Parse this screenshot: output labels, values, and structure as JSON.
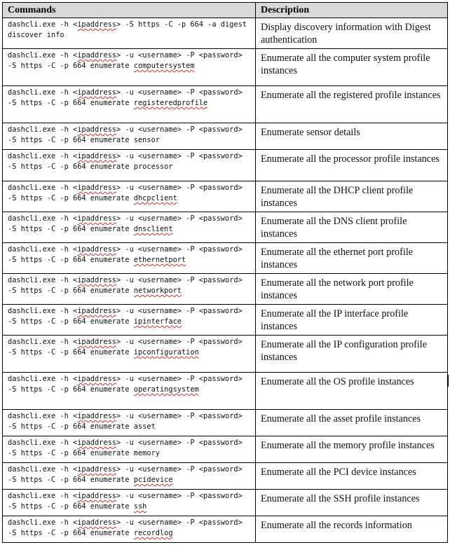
{
  "headers": {
    "commands": "Commands",
    "description": "Description"
  },
  "rows": [
    {
      "pre": "dashcli.exe -h <",
      "ip": "ipaddress",
      "mid": "> -S https -C -p 664 -a digest discover info",
      "target": "",
      "desc": "Display discovery information with Digest authentication"
    },
    {
      "pre": "dashcli.exe -h <",
      "ip": "ipaddress",
      "mid": "> -u <username> -P <password> -S https -C -p 664 enumerate ",
      "target": "computersystem",
      "desc": "Enumerate all the computer system profile instances"
    },
    {
      "pre": "dashcli.exe -h <",
      "ip": "ipaddress",
      "mid": "> -u <username> -P <password> -S https -C -p 664 enumerate ",
      "target": "registeredprofile",
      "desc": "Enumerate all the registered profile instances"
    },
    {
      "pre": "dashcli.exe -h <",
      "ip": "ipaddress",
      "mid": "> -u <username> -P <password> -S https -C -p 664 enumerate sensor",
      "target": "",
      "desc": "Enumerate sensor details"
    },
    {
      "pre": "dashcli.exe -h <",
      "ip": "ipaddress",
      "mid": "> -u <username> -P <password> -S https -C -p 664 enumerate processor",
      "target": "",
      "desc": "Enumerate all the processor profile instances"
    },
    {
      "pre": "dashcli.exe -h <",
      "ip": "ipaddress",
      "mid": "> -u <username> -P <password> -S https -C -p 664 enumerate ",
      "target": "dhcpclient",
      "desc": "Enumerate all the DHCP client profile instances"
    },
    {
      "pre": "dashcli.exe -h <",
      "ip": "ipaddress",
      "mid": "> -u <username> -P <password> -S https -C -p 664 enumerate ",
      "target": "dnsclient",
      "desc": "Enumerate all the DNS client profile instances"
    },
    {
      "pre": "dashcli.exe -h <",
      "ip": "ipaddress",
      "mid": "> -u <username> -P <password> -S https -C -p 664 enumerate ",
      "target": "ethernetport",
      "desc": "Enumerate all the ethernet port profile instances"
    },
    {
      "pre": "dashcli.exe -h <",
      "ip": "ipaddress",
      "mid": "> -u <username> -P <password> -S https -C -p 664 enumerate ",
      "target": "networkport",
      "desc": "Enumerate all the network port profile instances"
    },
    {
      "pre": "dashcli.exe -h <",
      "ip": "ipaddress",
      "mid": "> -u <username> -P <password> -S https -C -p 664 enumerate ",
      "target": "ipinterface",
      "desc": "Enumerate all the IP interface profile instances"
    },
    {
      "pre": "dashcli.exe -h <",
      "ip": "ipaddress",
      "mid": "> -u <username> -P <password> -S https -C -p 664 enumerate ",
      "target": "ipconfiguration",
      "desc": "Enumerate all the IP configuration profile instances"
    },
    {
      "pre": "dashcli.exe -h <",
      "ip": "ipaddress",
      "mid": "> -u <username> -P <password> -S https -C -p 664 enumerate ",
      "target": "operatingsystem",
      "desc": "Enumerate all the OS profile instances"
    },
    {
      "pre": "dashcli.exe -h <",
      "ip": "ipaddress",
      "mid": "> -u <username> -P <password> -S https -C -p 664 enumerate asset",
      "target": "",
      "desc": "Enumerate all the asset profile instances"
    },
    {
      "pre": "dashcli.exe -h <",
      "ip": "ipaddress",
      "mid": "> -u <username> -P <password> -S https -C -p 664 enumerate memory",
      "target": "",
      "desc": "Enumerate all the memory profile instances"
    },
    {
      "pre": "dashcli.exe -h <",
      "ip": "ipaddress",
      "mid": "> -u <username> -P <password> -S https -C -p 664 enumerate ",
      "target": "pcidevice",
      "desc": "Enumerate all the PCI device instances"
    },
    {
      "pre": "dashcli.exe -h <",
      "ip": "ipaddress",
      "mid": "> -u <username> -P <password> -S https -C -p 664 enumerate ",
      "target": "ssh",
      "desc": "Enumerate all the SSH profile instances"
    },
    {
      "pre": "dashcli.exe -h <",
      "ip": "ipaddress",
      "mid": "> -u <username> -P <password> -S https -C -p 664 enumerate ",
      "target": "recordlog",
      "desc": "Enumerate all the records information"
    }
  ]
}
